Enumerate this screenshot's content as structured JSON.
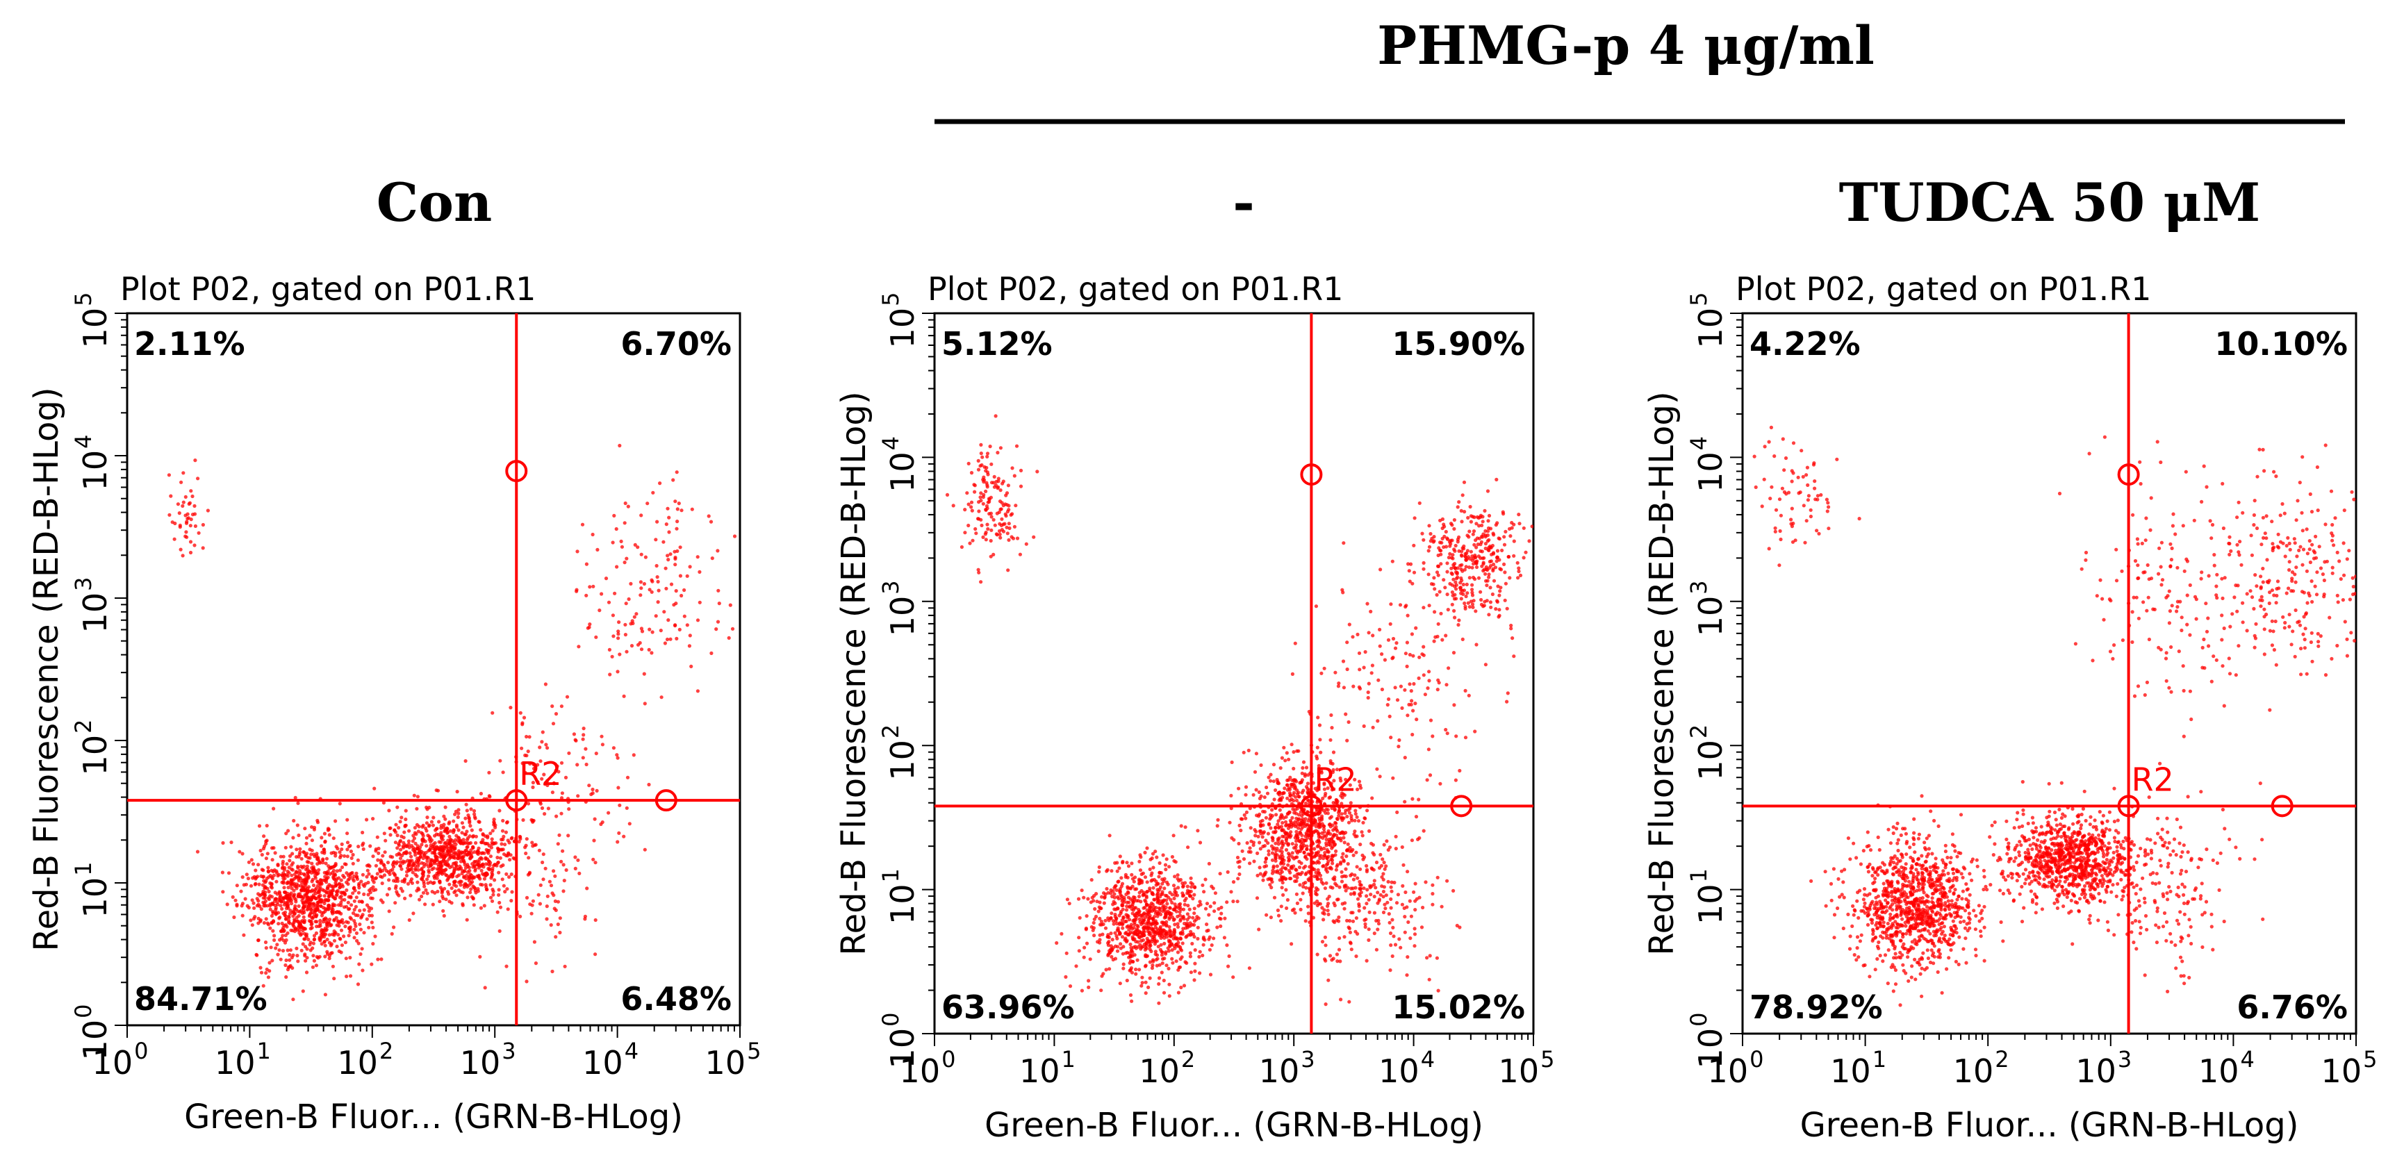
{
  "figure": {
    "header_title": "PHMG-p 4 μg/ml"
  },
  "colors": {
    "accent": "#ff0000",
    "text": "#000000",
    "axis": "#000000",
    "background": "#ffffff"
  },
  "chart_data": [
    {
      "type": "scatter",
      "condition": "Con",
      "plot_title": "Plot P02, gated on P01.R1",
      "xlabel": "Green-B Fluor... (GRN-B-HLog)",
      "ylabel": "Red-B Fluorescence (RED-B-HLog)",
      "x_scale": "log",
      "y_scale": "log",
      "xlim": [
        1,
        100000
      ],
      "ylim": [
        1,
        100000
      ],
      "gate_x": 1500,
      "gate_y": 38,
      "gate_label": "R2",
      "handle_points": [
        [
          1500,
          7800
        ],
        [
          1500,
          38
        ],
        [
          25000,
          38
        ]
      ],
      "quadrant_percents": {
        "upper_left": "2.11%",
        "upper_right": "6.70%",
        "lower_left": "84.71%",
        "lower_right": "6.48%"
      },
      "clusters": [
        {
          "x": 30,
          "y": 8,
          "n": 1100,
          "sx": 0.26,
          "sy": 0.22
        },
        {
          "x": 400,
          "y": 15,
          "n": 850,
          "sx": 0.28,
          "sy": 0.16
        },
        {
          "x": 3,
          "y": 4000,
          "n": 45,
          "sx": 0.1,
          "sy": 0.18
        },
        {
          "x": 20000,
          "y": 1200,
          "n": 160,
          "sx": 0.33,
          "sy": 0.35
        },
        {
          "x": 3000,
          "y": 60,
          "n": 120,
          "sx": 0.3,
          "sy": 0.3
        },
        {
          "x": 2000,
          "y": 10,
          "n": 100,
          "sx": 0.3,
          "sy": 0.3
        }
      ],
      "scatter_seed": 11
    },
    {
      "type": "scatter",
      "condition": "-",
      "plot_title": "Plot P02, gated on P01.R1",
      "xlabel": "Green-B Fluor... (GRN-B-HLog)",
      "ylabel": "Red-B Fluorescence (RED-B-HLog)",
      "x_scale": "log",
      "y_scale": "log",
      "xlim": [
        1,
        100000
      ],
      "ylim": [
        1,
        100000
      ],
      "gate_x": 1400,
      "gate_y": 38,
      "gate_label": "R2",
      "handle_points": [
        [
          1400,
          7600
        ],
        [
          1400,
          38
        ],
        [
          25000,
          38
        ]
      ],
      "quadrant_percents": {
        "upper_left": "5.12%",
        "upper_right": "15.90%",
        "lower_left": "63.96%",
        "lower_right": "15.02%"
      },
      "clusters": [
        {
          "x": 60,
          "y": 6,
          "n": 900,
          "sx": 0.25,
          "sy": 0.2
        },
        {
          "x": 1200,
          "y": 25,
          "n": 900,
          "sx": 0.25,
          "sy": 0.25
        },
        {
          "x": 3,
          "y": 5000,
          "n": 150,
          "sx": 0.13,
          "sy": 0.18
        },
        {
          "x": 30000,
          "y": 2000,
          "n": 350,
          "sx": 0.22,
          "sy": 0.2
        },
        {
          "x": 4000,
          "y": 8,
          "n": 250,
          "sx": 0.3,
          "sy": 0.25
        },
        {
          "x": 8000,
          "y": 300,
          "n": 150,
          "sx": 0.35,
          "sy": 0.35
        }
      ],
      "scatter_seed": 23
    },
    {
      "type": "scatter",
      "condition": "TUDCA 50 μM",
      "plot_title": "Plot P02, gated on P01.R1",
      "xlabel": "Green-B Fluor... (GRN-B-HLog)",
      "ylabel": "Red-B Fluorescence (RED-B-HLog)",
      "x_scale": "log",
      "y_scale": "log",
      "xlim": [
        1,
        100000
      ],
      "ylim": [
        1,
        100000
      ],
      "gate_x": 1400,
      "gate_y": 38,
      "gate_label": "R2",
      "handle_points": [
        [
          1400,
          7600
        ],
        [
          1400,
          38
        ],
        [
          25000,
          38
        ]
      ],
      "quadrant_percents": {
        "upper_left": "4.22%",
        "upper_right": "10.10%",
        "lower_left": "78.92%",
        "lower_right": "6.76%"
      },
      "clusters": [
        {
          "x": 25,
          "y": 8,
          "n": 1000,
          "sx": 0.25,
          "sy": 0.22
        },
        {
          "x": 500,
          "y": 16,
          "n": 900,
          "sx": 0.27,
          "sy": 0.16
        },
        {
          "x": 3,
          "y": 5000,
          "n": 70,
          "sx": 0.2,
          "sy": 0.2
        },
        {
          "x": 30000,
          "y": 1500,
          "n": 250,
          "sx": 0.35,
          "sy": 0.35
        },
        {
          "x": 3000,
          "y": 1000,
          "n": 150,
          "sx": 0.35,
          "sy": 0.45
        },
        {
          "x": 3000,
          "y": 10,
          "n": 150,
          "sx": 0.3,
          "sy": 0.3
        }
      ],
      "scatter_seed": 37
    }
  ]
}
